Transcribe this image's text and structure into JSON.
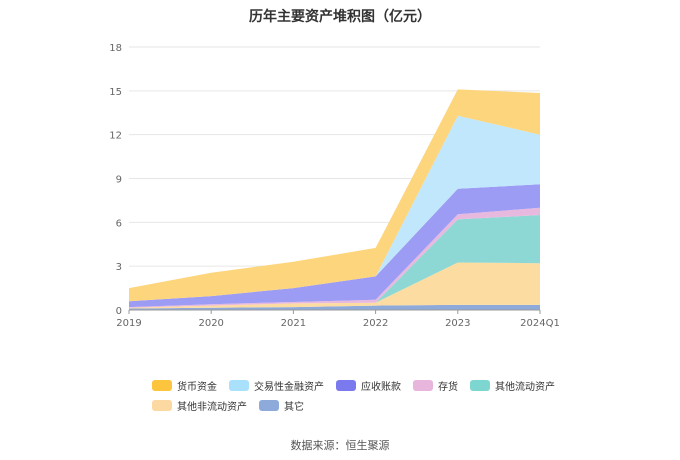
{
  "chart_data": {
    "type": "area",
    "stacked": true,
    "title": "历年主要资产堆积图（亿元）",
    "categories": [
      "2019",
      "2020",
      "2021",
      "2022",
      "2023",
      "2024Q1"
    ],
    "yticks": [
      "0",
      "3",
      "6",
      "9",
      "12",
      "15",
      "18"
    ],
    "ylim": [
      0,
      18
    ],
    "grid": true,
    "legend_position": "bottom",
    "series": [
      {
        "name": "其它",
        "color": "#8eaadb",
        "values": [
          0.1,
          0.15,
          0.2,
          0.3,
          0.35,
          0.35
        ]
      },
      {
        "name": "其他非流动资产",
        "color": "#fddca1",
        "values": [
          0.05,
          0.15,
          0.25,
          0.2,
          2.9,
          2.85
        ]
      },
      {
        "name": "其他流动资产",
        "color": "#8dd8d5",
        "values": [
          0.0,
          0.0,
          0.0,
          0.0,
          2.95,
          3.3
        ]
      },
      {
        "name": "存货",
        "color": "#e8b9de",
        "values": [
          0.05,
          0.1,
          0.1,
          0.2,
          0.35,
          0.5
        ]
      },
      {
        "name": "应收账款",
        "color": "#9d9cf5",
        "values": [
          0.4,
          0.55,
          0.95,
          1.6,
          1.75,
          1.6
        ]
      },
      {
        "name": "交易性金融资产",
        "color": "#c0e7fb",
        "values": [
          0.0,
          0.0,
          0.0,
          0.0,
          5.0,
          3.4
        ]
      },
      {
        "name": "货币资金",
        "color": "#fdd57c",
        "values": [
          0.9,
          1.6,
          1.8,
          1.95,
          1.8,
          2.85
        ]
      }
    ]
  },
  "legend": [
    {
      "label": "货币资金",
      "color": "#fdc43d"
    },
    {
      "label": "交易性金融资产",
      "color": "#a9e0fb"
    },
    {
      "label": "应收账款",
      "color": "#7b79ee"
    },
    {
      "label": "存货",
      "color": "#e8b5dc"
    },
    {
      "label": "其他流动资产",
      "color": "#7ed6d1"
    },
    {
      "label": "其他非流动资产",
      "color": "#fcd9a0"
    },
    {
      "label": "其它",
      "color": "#8eaadb"
    }
  ],
  "source": "数据来源：恒生聚源"
}
